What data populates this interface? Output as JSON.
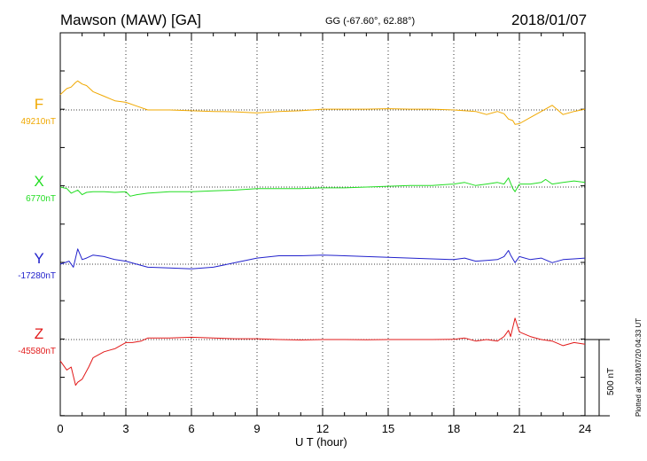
{
  "header": {
    "station": "Mawson (MAW)  [GA]",
    "coords": "GG (-67.60°,  62.88°)",
    "date": "2018/01/07"
  },
  "footer": {
    "xlabel": "U T (hour)",
    "plotted": "Plotted at 2018/07/20 04:33 UT",
    "scale_label": "500 nT"
  },
  "chart_data": {
    "type": "line",
    "xlabel": "U T (hour)",
    "xlim": [
      0,
      24
    ],
    "xticks": [
      "0",
      "3",
      "6",
      "9",
      "12",
      "15",
      "18",
      "21",
      "24"
    ],
    "grid": "vertical dotted at 3-hour intervals",
    "scale_nT": 500,
    "series": [
      {
        "name": "F",
        "color": "#f0a800",
        "baseline_label": "49210nT",
        "x": [
          0,
          0.3,
          0.5,
          0.7,
          0.8,
          1.0,
          1.2,
          1.5,
          2,
          2.5,
          3,
          3.5,
          4,
          5,
          6,
          7,
          8,
          9,
          10,
          11,
          12,
          13,
          14,
          15,
          16,
          17,
          18,
          18.5,
          19,
          19.5,
          20,
          20.3,
          20.5,
          20.7,
          20.8,
          21,
          21.5,
          22,
          22.5,
          23,
          23.5,
          24
        ],
        "y": [
          49310,
          49350,
          49360,
          49390,
          49400,
          49380,
          49370,
          49330,
          49300,
          49270,
          49260,
          49235,
          49210,
          49210,
          49205,
          49200,
          49198,
          49190,
          49200,
          49205,
          49215,
          49215,
          49215,
          49218,
          49215,
          49215,
          49210,
          49205,
          49200,
          49180,
          49200,
          49185,
          49150,
          49140,
          49115,
          49120,
          49160,
          49200,
          49240,
          49180,
          49200,
          49215
        ]
      },
      {
        "name": "X",
        "color": "#22dd22",
        "baseline_label": "6770nT",
        "x": [
          0,
          0.3,
          0.5,
          0.8,
          1.0,
          1.2,
          1.5,
          2,
          2.5,
          3,
          3.2,
          3.5,
          4,
          5,
          6,
          7,
          8,
          9,
          10,
          11,
          12,
          13,
          14,
          15,
          16,
          17,
          18,
          18.5,
          19,
          19.5,
          20,
          20.3,
          20.5,
          20.7,
          20.8,
          21,
          21.5,
          22,
          22.2,
          22.5,
          23,
          23.5,
          24
        ],
        "y": [
          6770,
          6760,
          6730,
          6750,
          6720,
          6735,
          6740,
          6740,
          6735,
          6740,
          6710,
          6720,
          6730,
          6740,
          6740,
          6745,
          6750,
          6760,
          6760,
          6760,
          6765,
          6765,
          6770,
          6775,
          6780,
          6780,
          6790,
          6800,
          6780,
          6790,
          6800,
          6790,
          6830,
          6760,
          6740,
          6790,
          6790,
          6800,
          6820,
          6790,
          6800,
          6810,
          6800
        ]
      },
      {
        "name": "Y",
        "color": "#2222cc",
        "baseline_label": "-17280nT",
        "x": [
          0,
          0.4,
          0.6,
          0.8,
          1.0,
          1.2,
          1.5,
          2,
          2.5,
          3,
          3.5,
          4,
          5,
          6,
          7,
          8,
          9,
          10,
          11,
          12,
          13,
          14,
          15,
          16,
          17,
          18,
          18.5,
          19,
          19.5,
          20,
          20.3,
          20.5,
          20.6,
          20.8,
          21,
          21.5,
          22,
          22.5,
          23,
          23.5,
          24
        ],
        "y": [
          -17280,
          -17260,
          -17300,
          -17180,
          -17250,
          -17240,
          -17220,
          -17230,
          -17250,
          -17260,
          -17280,
          -17300,
          -17305,
          -17310,
          -17300,
          -17270,
          -17240,
          -17225,
          -17225,
          -17220,
          -17225,
          -17230,
          -17235,
          -17240,
          -17245,
          -17250,
          -17240,
          -17260,
          -17255,
          -17250,
          -17230,
          -17190,
          -17220,
          -17270,
          -17230,
          -17250,
          -17240,
          -17270,
          -17250,
          -17245,
          -17240
        ]
      },
      {
        "name": "Z",
        "color": "#e21a1a",
        "baseline_label": "-45580nT",
        "x": [
          0,
          0.3,
          0.5,
          0.7,
          0.8,
          1.0,
          1.3,
          1.5,
          2,
          2.5,
          3,
          3.3,
          3.7,
          4,
          5,
          6,
          7,
          8,
          9,
          10,
          11,
          12,
          13,
          14,
          15,
          16,
          17,
          18,
          18.5,
          19,
          19.5,
          20,
          20.3,
          20.5,
          20.6,
          20.8,
          21,
          21.5,
          22,
          22.5,
          23,
          23.5,
          24
        ],
        "y": [
          -45720,
          -45780,
          -45760,
          -45880,
          -45860,
          -45840,
          -45760,
          -45700,
          -45660,
          -45640,
          -45600,
          -45600,
          -45590,
          -45570,
          -45570,
          -45565,
          -45570,
          -45575,
          -45575,
          -45580,
          -45583,
          -45580,
          -45580,
          -45582,
          -45580,
          -45580,
          -45580,
          -45578,
          -45570,
          -45590,
          -45580,
          -45590,
          -45560,
          -45520,
          -45560,
          -45440,
          -45530,
          -45560,
          -45580,
          -45590,
          -45620,
          -45600,
          -45610
        ]
      }
    ]
  }
}
